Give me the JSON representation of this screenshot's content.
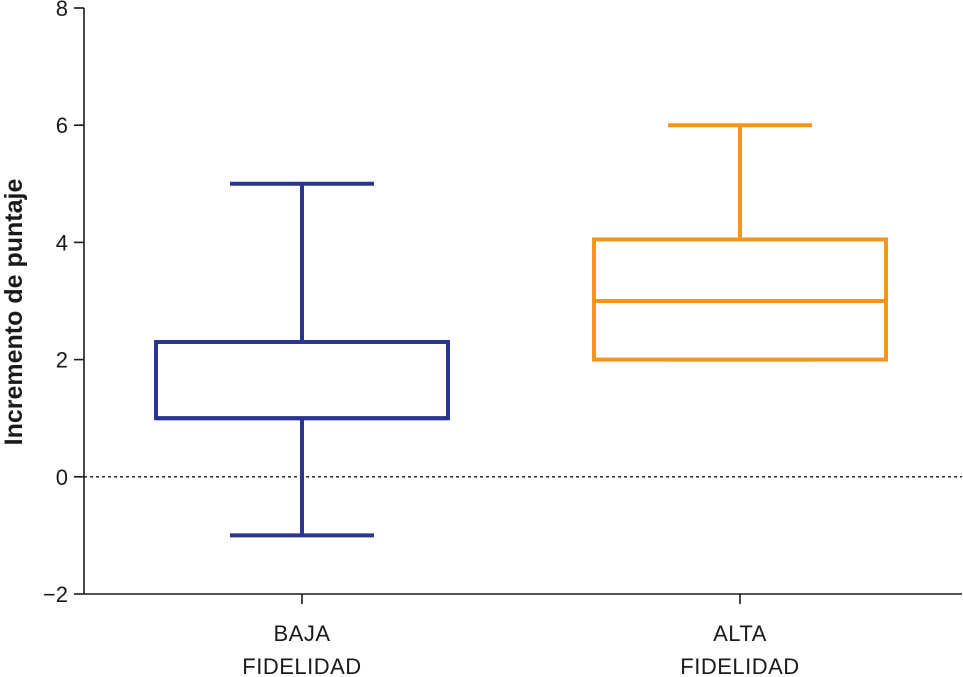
{
  "chart_data": {
    "type": "boxplot",
    "ylabel": "Incremento de puntaje",
    "ylim": [
      -2,
      8
    ],
    "yticks": [
      {
        "value": -2,
        "label": "−2"
      },
      {
        "value": 0,
        "label": "0"
      },
      {
        "value": 2,
        "label": "2"
      },
      {
        "value": 4,
        "label": "4"
      },
      {
        "value": 6,
        "label": "6"
      },
      {
        "value": 8,
        "label": "8"
      }
    ],
    "reference_line": {
      "y": 0,
      "style": "dashed"
    },
    "grid": false,
    "categories": [
      {
        "line1": "BAJA",
        "line2": "FIDELIDAD"
      },
      {
        "line1": "ALTA",
        "line2": "FIDELIDAD"
      }
    ],
    "boxes": [
      {
        "min": -1,
        "q1": 1,
        "median": 1,
        "q3": 2.3,
        "max": 5,
        "color": "#2b3590"
      },
      {
        "min": 2,
        "q1": 2,
        "median": 3,
        "q3": 4.05,
        "max": 6,
        "color": "#f7941d"
      }
    ]
  }
}
